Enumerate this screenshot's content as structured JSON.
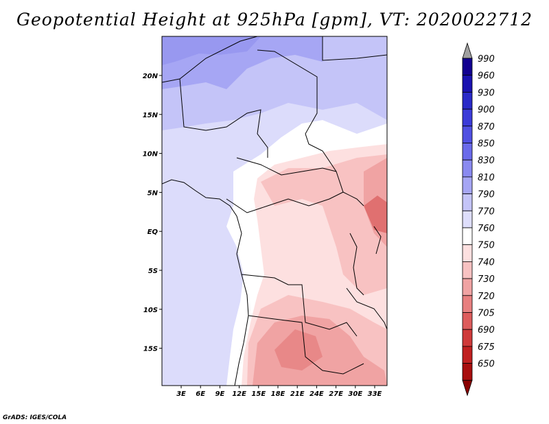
{
  "title": "Geopotential Height at 925hPa [gpm], VT: 2020022712",
  "footer": "GrADS: IGES/COLA",
  "map": {
    "lon_labels": [
      "3E",
      "6E",
      "9E",
      "12E",
      "15E",
      "18E",
      "21E",
      "24E",
      "27E",
      "30E",
      "33E"
    ],
    "lat_labels": [
      "20N",
      "15N",
      "10N",
      "5N",
      "EQ",
      "5S",
      "10S",
      "15S"
    ]
  },
  "colorbar": {
    "levels": [
      "990",
      "960",
      "930",
      "900",
      "870",
      "850",
      "830",
      "810",
      "790",
      "770",
      "760",
      "750",
      "740",
      "730",
      "720",
      "705",
      "690",
      "675",
      "650"
    ],
    "colors": [
      "#120090",
      "#1a12b0",
      "#2a2ac8",
      "#3b3bd8",
      "#5050e2",
      "#6a6aea",
      "#8a8af0",
      "#a6a6f4",
      "#c4c4f8",
      "#dedefb",
      "#ffffff",
      "#fde0e0",
      "#f8c2c2",
      "#f0a3a3",
      "#e88080",
      "#dd5c5c",
      "#cf3a3a",
      "#c02020",
      "#a80e0e"
    ],
    "top_cap_color": "#a0a0a0",
    "bottom_cap_color": "#8a0000"
  }
}
